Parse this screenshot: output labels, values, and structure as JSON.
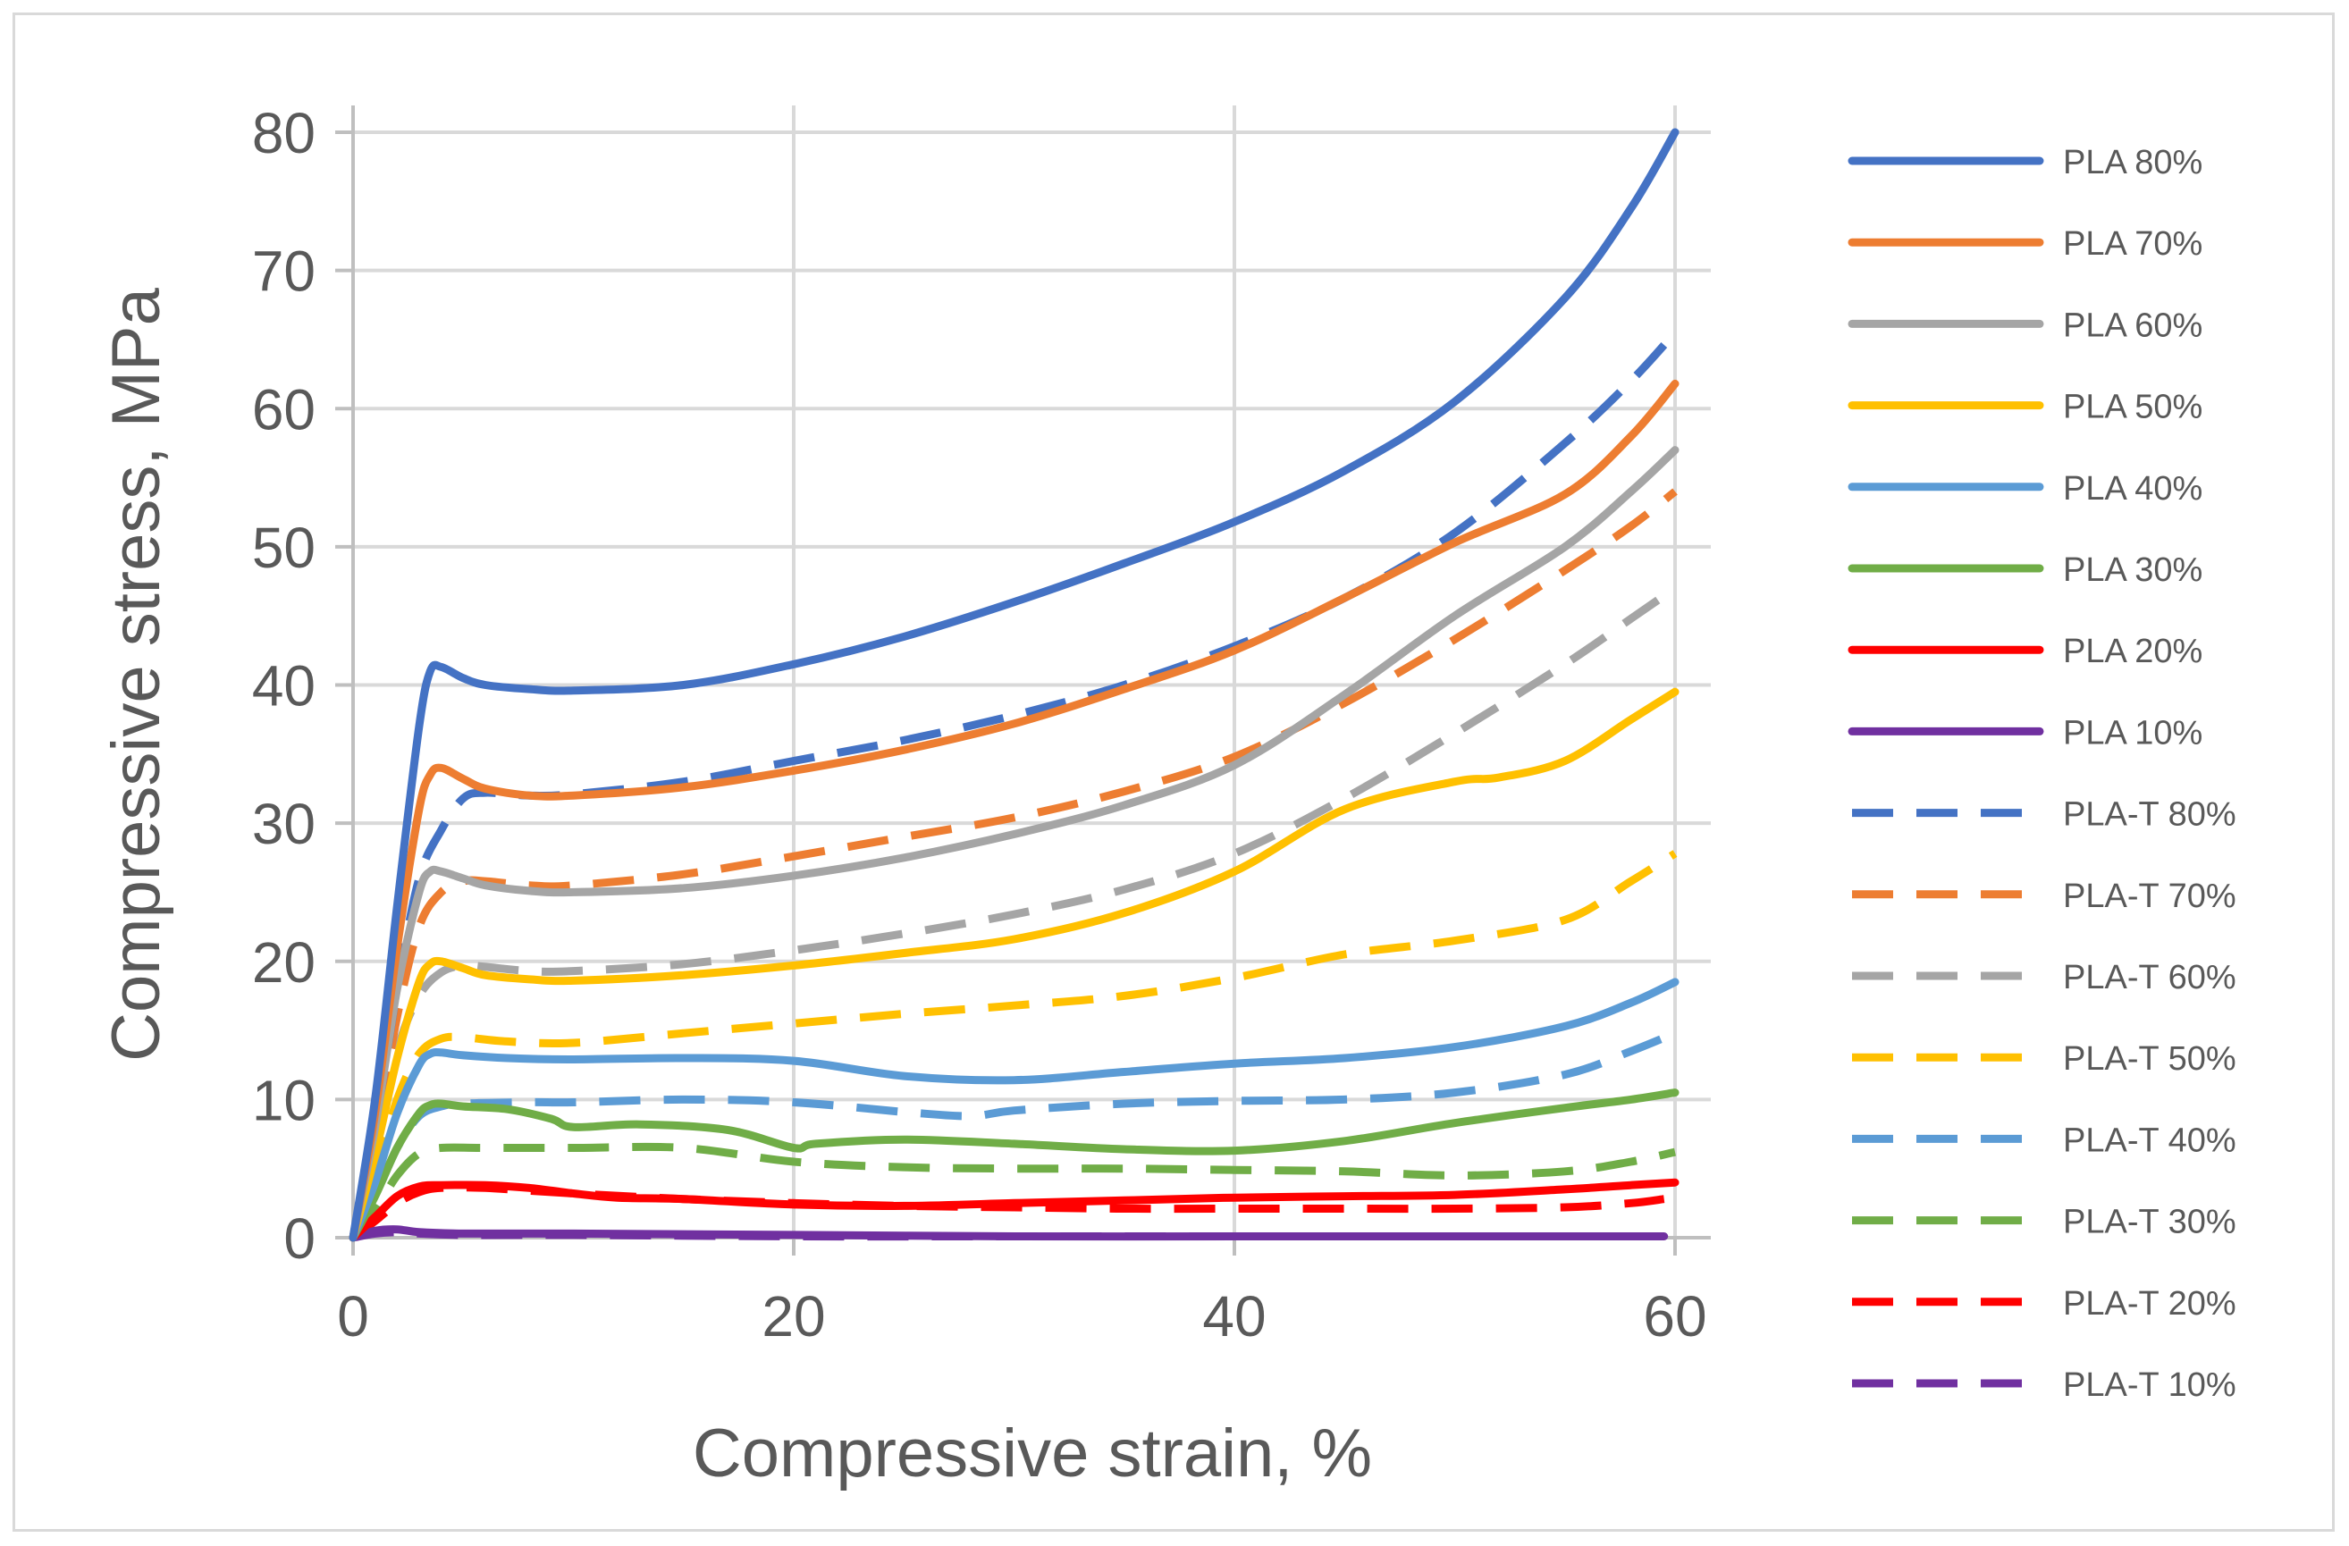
{
  "chart_data": {
    "type": "line",
    "title": "",
    "xlabel": "Compressive strain, %",
    "ylabel": "Compressive stress, MPa",
    "xlim": [
      0,
      60
    ],
    "ylim": [
      0,
      80
    ],
    "xticks": [
      0,
      20,
      40,
      60
    ],
    "yticks": [
      0,
      10,
      20,
      30,
      40,
      50,
      60,
      70,
      80
    ],
    "grid": true,
    "legend_position": "right",
    "series": [
      {
        "name": "PLA 80%",
        "color": "#4472C4",
        "dashed": false,
        "x": [
          0,
          1,
          2,
          3,
          3.5,
          4,
          5,
          6,
          8,
          10,
          15,
          20,
          25,
          30,
          35,
          40,
          45,
          50,
          55,
          58,
          60
        ],
        "y": [
          0,
          10,
          24,
          37,
          41,
          41.3,
          40.5,
          40,
          39.7,
          39.6,
          40,
          41.5,
          43.5,
          46,
          48.8,
          51.8,
          55.5,
          60.5,
          68,
          74.5,
          80
        ]
      },
      {
        "name": "PLA 70%",
        "color": "#ED7D31",
        "dashed": false,
        "x": [
          0,
          1,
          2,
          3,
          3.5,
          4,
          5,
          6,
          8,
          10,
          15,
          20,
          25,
          30,
          35,
          40,
          45,
          50,
          55,
          58,
          60
        ],
        "y": [
          0,
          9,
          21,
          31,
          33.5,
          34,
          33.2,
          32.5,
          32,
          32,
          32.6,
          33.8,
          35.3,
          37.2,
          39.7,
          42.5,
          46.3,
          50.3,
          53.8,
          58,
          61.8
        ]
      },
      {
        "name": "PLA 60%",
        "color": "#A5A5A5",
        "dashed": false,
        "x": [
          0,
          1,
          2,
          3,
          3.5,
          4,
          5,
          6,
          8,
          10,
          15,
          20,
          25,
          30,
          35,
          40,
          45,
          50,
          55,
          58,
          60
        ],
        "y": [
          0,
          8,
          18,
          25,
          26.5,
          26.5,
          26,
          25.5,
          25.1,
          25,
          25.3,
          26.2,
          27.5,
          29.2,
          31.3,
          34.2,
          39.3,
          45,
          50,
          54,
          57
        ]
      },
      {
        "name": "PLA 50%",
        "color": "#FFC000",
        "dashed": false,
        "x": [
          0,
          1,
          2,
          3,
          3.5,
          4,
          5,
          6,
          8,
          10,
          15,
          20,
          25,
          30,
          35,
          40,
          45,
          50,
          52,
          55,
          58,
          60
        ],
        "y": [
          0,
          6,
          13,
          18.5,
          19.8,
          20,
          19.5,
          19,
          18.7,
          18.6,
          19,
          19.7,
          20.6,
          21.6,
          23.5,
          26.5,
          31,
          33,
          33.3,
          34.5,
          37.5,
          39.5
        ]
      },
      {
        "name": "PLA 40%",
        "color": "#5B9BD5",
        "dashed": false,
        "x": [
          0,
          1,
          2,
          3,
          3.5,
          4,
          5,
          7,
          10,
          15,
          20,
          25,
          30,
          35,
          40,
          45,
          50,
          55,
          58,
          60
        ],
        "y": [
          0,
          4,
          9,
          12.5,
          13.3,
          13.4,
          13.2,
          13,
          12.9,
          13,
          12.8,
          11.7,
          11.4,
          12,
          12.6,
          13,
          13.8,
          15.3,
          17,
          18.5
        ]
      },
      {
        "name": "PLA 30%",
        "color": "#70AD47",
        "dashed": false,
        "x": [
          0,
          1,
          2,
          3,
          3.5,
          4,
          5,
          7,
          9,
          10,
          13,
          17,
          20,
          21,
          25,
          30,
          35,
          40,
          45,
          50,
          55,
          58,
          60
        ],
        "y": [
          0,
          3,
          6.5,
          9,
          9.6,
          9.7,
          9.5,
          9.3,
          8.6,
          8,
          8.2,
          7.8,
          6.5,
          6.8,
          7.1,
          6.8,
          6.4,
          6.3,
          7,
          8.3,
          9.4,
          10,
          10.5
        ]
      },
      {
        "name": "PLA 20%",
        "color": "#FF0000",
        "dashed": false,
        "x": [
          0,
          1,
          2,
          3,
          4,
          6,
          8,
          10,
          12,
          15,
          20,
          25,
          30,
          35,
          40,
          45,
          50,
          55,
          58,
          60
        ],
        "y": [
          0,
          1.5,
          3,
          3.7,
          3.8,
          3.8,
          3.6,
          3.2,
          2.9,
          2.8,
          2.4,
          2.3,
          2.5,
          2.7,
          2.9,
          3,
          3.1,
          3.5,
          3.8,
          4
        ]
      },
      {
        "name": "PLA 10%",
        "color": "#7030A0",
        "dashed": false,
        "x": [
          0,
          1,
          2,
          3,
          5,
          10,
          20,
          30,
          40,
          50,
          59.5
        ],
        "y": [
          0,
          0.5,
          0.6,
          0.4,
          0.3,
          0.3,
          0.2,
          0.1,
          0.1,
          0.1,
          0.1
        ]
      },
      {
        "name": "PLA-T 80%",
        "color": "#4472C4",
        "dashed": true,
        "x": [
          0,
          1,
          2,
          3,
          4,
          5,
          6,
          8,
          10,
          15,
          20,
          25,
          30,
          35,
          40,
          45,
          50,
          55,
          58,
          60
        ],
        "y": [
          0,
          8,
          18,
          26,
          29.5,
          31.8,
          32.2,
          32,
          32.1,
          33,
          34.5,
          36,
          37.8,
          40,
          42.8,
          46.3,
          51,
          57.5,
          62,
          65.5
        ]
      },
      {
        "name": "PLA-T 70%",
        "color": "#ED7D31",
        "dashed": true,
        "x": [
          0,
          1,
          2,
          3,
          4,
          5,
          6,
          8,
          10,
          15,
          20,
          25,
          30,
          35,
          40,
          45,
          50,
          55,
          58,
          60
        ],
        "y": [
          0,
          7,
          16,
          22.5,
          25,
          25.8,
          25.8,
          25.5,
          25.5,
          26.3,
          27.6,
          29,
          30.4,
          32.3,
          34.8,
          38.7,
          43.3,
          48.3,
          51.5,
          54
        ]
      },
      {
        "name": "PLA-T 60%",
        "color": "#A5A5A5",
        "dashed": true,
        "x": [
          0,
          1,
          2,
          3,
          4,
          5,
          6,
          8,
          10,
          15,
          20,
          25,
          30,
          35,
          40,
          45,
          50,
          55,
          58,
          60
        ],
        "y": [
          0,
          6,
          13.5,
          17.5,
          19.2,
          19.7,
          19.6,
          19.3,
          19.3,
          19.8,
          20.8,
          22,
          23.4,
          25.2,
          27.8,
          31.8,
          36.5,
          41.5,
          44.8,
          47
        ]
      },
      {
        "name": "PLA-T 50%",
        "color": "#FFC000",
        "dashed": true,
        "x": [
          0,
          1,
          2,
          3,
          4,
          5,
          7,
          10,
          15,
          20,
          25,
          30,
          35,
          40,
          45,
          50,
          55,
          58,
          60
        ],
        "y": [
          0,
          4.5,
          10,
          13.3,
          14.4,
          14.5,
          14.2,
          14.1,
          14.8,
          15.5,
          16.2,
          16.8,
          17.5,
          18.8,
          20.5,
          21.5,
          23,
          25.8,
          27.8
        ]
      },
      {
        "name": "PLA-T 40%",
        "color": "#5B9BD5",
        "dashed": true,
        "x": [
          0,
          1,
          2,
          3,
          4,
          5,
          8,
          10,
          15,
          20,
          25,
          28,
          30,
          35,
          40,
          45,
          50,
          55,
          58,
          60
        ],
        "y": [
          0,
          3,
          6.5,
          8.8,
          9.5,
          9.7,
          9.8,
          9.8,
          10,
          9.8,
          9.1,
          8.8,
          9.2,
          9.7,
          9.9,
          10,
          10.5,
          11.8,
          13.5,
          14.8
        ]
      },
      {
        "name": "PLA-T 30%",
        "color": "#70AD47",
        "dashed": true,
        "x": [
          0,
          1,
          2,
          3,
          4,
          6,
          10,
          15,
          20,
          25,
          30,
          35,
          40,
          45,
          50,
          55,
          58,
          60
        ],
        "y": [
          0,
          2,
          4.5,
          6.1,
          6.5,
          6.5,
          6.5,
          6.5,
          5.5,
          5.1,
          5,
          5,
          4.9,
          4.8,
          4.5,
          4.8,
          5.5,
          6.2
        ]
      },
      {
        "name": "PLA-T 20%",
        "color": "#FF0000",
        "dashed": true,
        "x": [
          0,
          1,
          2,
          3,
          4,
          6,
          10,
          15,
          20,
          25,
          30,
          35,
          40,
          45,
          50,
          55,
          58,
          59.5
        ],
        "y": [
          0,
          1.2,
          2.5,
          3.3,
          3.6,
          3.6,
          3.2,
          2.8,
          2.5,
          2.3,
          2.2,
          2.1,
          2.1,
          2.1,
          2.1,
          2.2,
          2.5,
          2.8
        ]
      },
      {
        "name": "PLA-T 10%",
        "color": "#7030A0",
        "dashed": true,
        "x": [
          0,
          1,
          2,
          3,
          5,
          10,
          20,
          30,
          40,
          50,
          59.5
        ],
        "y": [
          0,
          0.3,
          0.4,
          0.3,
          0.2,
          0.2,
          0.1,
          0.1,
          0.1,
          0.1,
          0.1
        ]
      }
    ]
  }
}
